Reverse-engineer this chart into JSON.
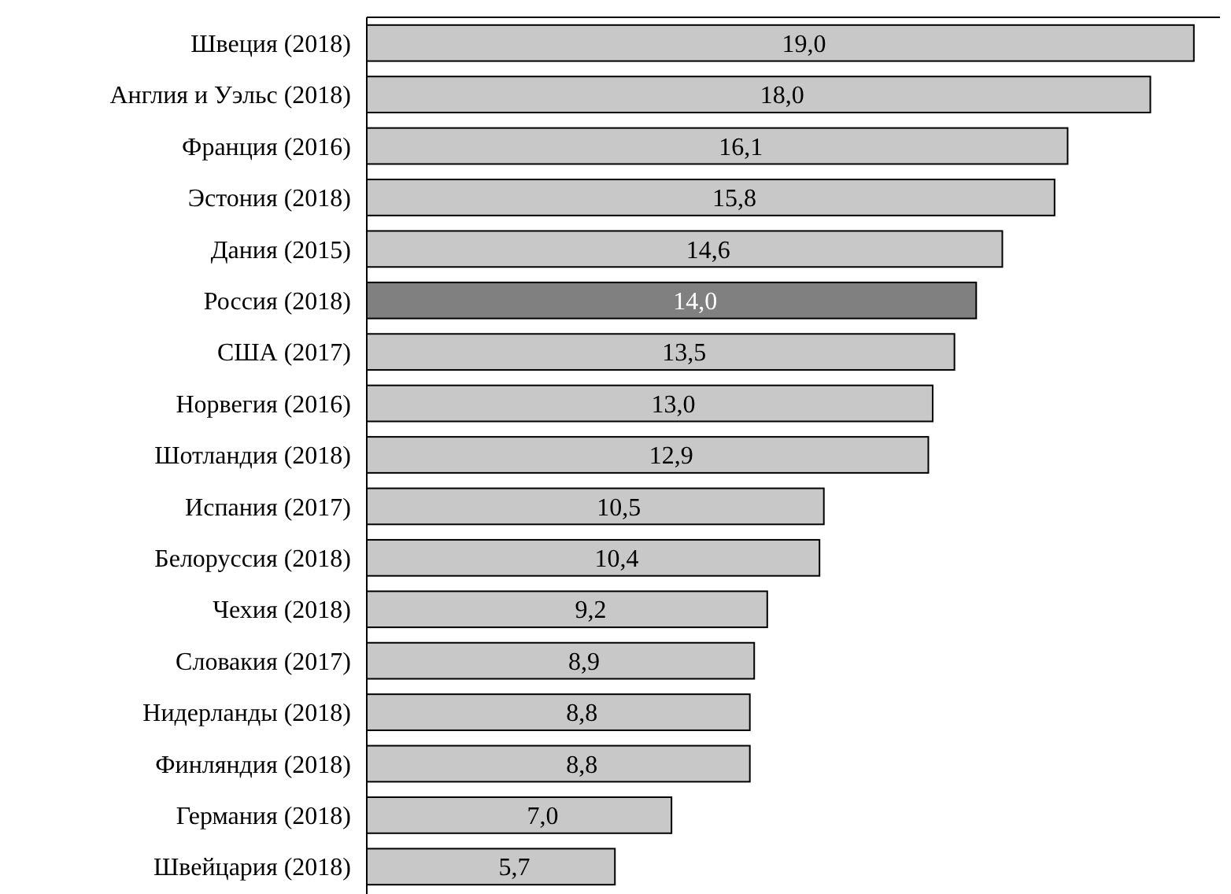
{
  "chart_data": {
    "type": "bar",
    "orientation": "horizontal",
    "categories": [
      "Швеция (2018)",
      "Англия и Уэльс (2018)",
      "Франция (2016)",
      "Эстония (2018)",
      "Дания (2015)",
      "Россия (2018)",
      "США (2017)",
      "Норвегия (2016)",
      "Шотландия (2018)",
      "Испания (2017)",
      "Белоруссия (2018)",
      "Чехия (2018)",
      "Словакия (2017)",
      "Нидерланды (2018)",
      "Финляндия (2018)",
      "Германия (2018)",
      "Швейцария (2018)"
    ],
    "values": [
      19.0,
      18.0,
      16.1,
      15.8,
      14.6,
      14.0,
      13.5,
      13.0,
      12.9,
      10.5,
      10.4,
      9.2,
      8.9,
      8.8,
      8.8,
      7.0,
      5.7
    ],
    "value_labels": [
      "19,0",
      "18,0",
      "16,1",
      "15,8",
      "14,6",
      "14,0",
      "13,5",
      "13,0",
      "12,9",
      "10,5",
      "10,4",
      "9,2",
      "8,9",
      "8,8",
      "8,8",
      "7,0",
      "5,7"
    ],
    "colors": [
      "#c8c8c8",
      "#c8c8c8",
      "#c8c8c8",
      "#c8c8c8",
      "#c8c8c8",
      "#808080",
      "#c8c8c8",
      "#c8c8c8",
      "#c8c8c8",
      "#c8c8c8",
      "#c8c8c8",
      "#c8c8c8",
      "#c8c8c8",
      "#c8c8c8",
      "#c8c8c8",
      "#c8c8c8",
      "#c8c8c8"
    ],
    "xlim": [
      0,
      19.6
    ]
  }
}
